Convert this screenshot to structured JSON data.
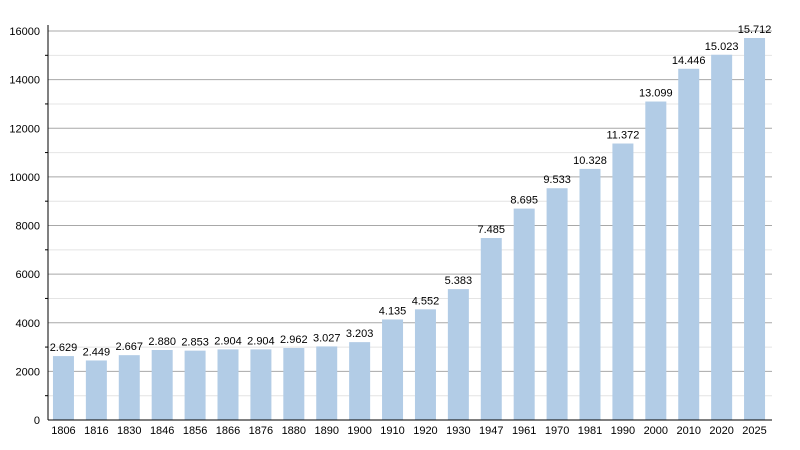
{
  "chart_data": {
    "type": "bar",
    "title": "",
    "xlabel": "",
    "ylabel": "",
    "ylim": [
      0,
      16000
    ],
    "yticks": [
      0,
      2000,
      4000,
      6000,
      8000,
      10000,
      12000,
      14000,
      16000
    ],
    "grid": true,
    "bar_color": "#b2cce6",
    "categories": [
      "1806",
      "1816",
      "1830",
      "1846",
      "1856",
      "1866",
      "1876",
      "1880",
      "1890",
      "1900",
      "1910",
      "1920",
      "1930",
      "1947",
      "1961",
      "1970",
      "1981",
      "1990",
      "2000",
      "2010",
      "2020",
      "2025"
    ],
    "values": [
      2629,
      2449,
      2667,
      2880,
      2853,
      2904,
      2904,
      2962,
      3027,
      3203,
      4135,
      4552,
      5383,
      7485,
      8695,
      9533,
      10328,
      11372,
      13099,
      14446,
      15023,
      15712
    ],
    "labels": [
      "2.629",
      "2.449",
      "2.667",
      "2.880",
      "2.853",
      "2.904",
      "2.904",
      "2.962",
      "3.027",
      "3.203",
      "4.135",
      "4.552",
      "5.383",
      "7.485",
      "8.695",
      "9.533",
      "10.328",
      "11.372",
      "13.099",
      "14.446",
      "15.023",
      "15.712"
    ]
  }
}
